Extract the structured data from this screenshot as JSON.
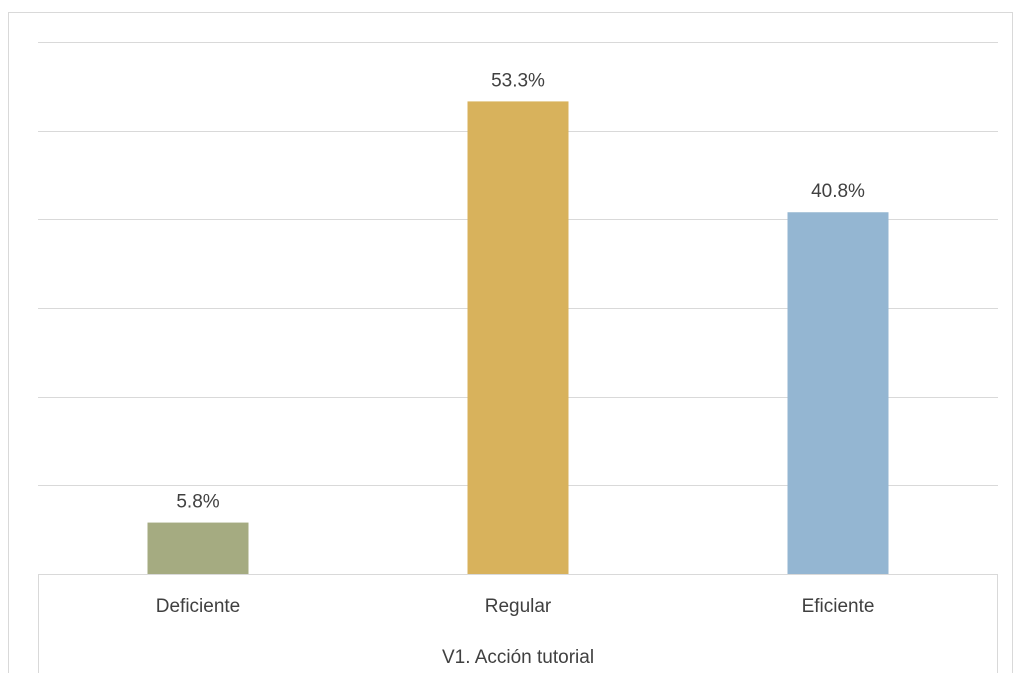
{
  "chart_data": {
    "type": "bar",
    "categories": [
      "Deficiente",
      "Regular",
      "Eficiente"
    ],
    "values": [
      5.8,
      53.3,
      40.8
    ],
    "data_labels": [
      "5.8%",
      "53.3%",
      "40.8%"
    ],
    "colors": [
      "#a5ab81",
      "#d8b25c",
      "#94b6d2"
    ],
    "axis_title": "V1. Acción tutorial",
    "ylim": [
      0,
      60
    ],
    "gridline_step": 10,
    "grid": true,
    "legend": "none"
  }
}
